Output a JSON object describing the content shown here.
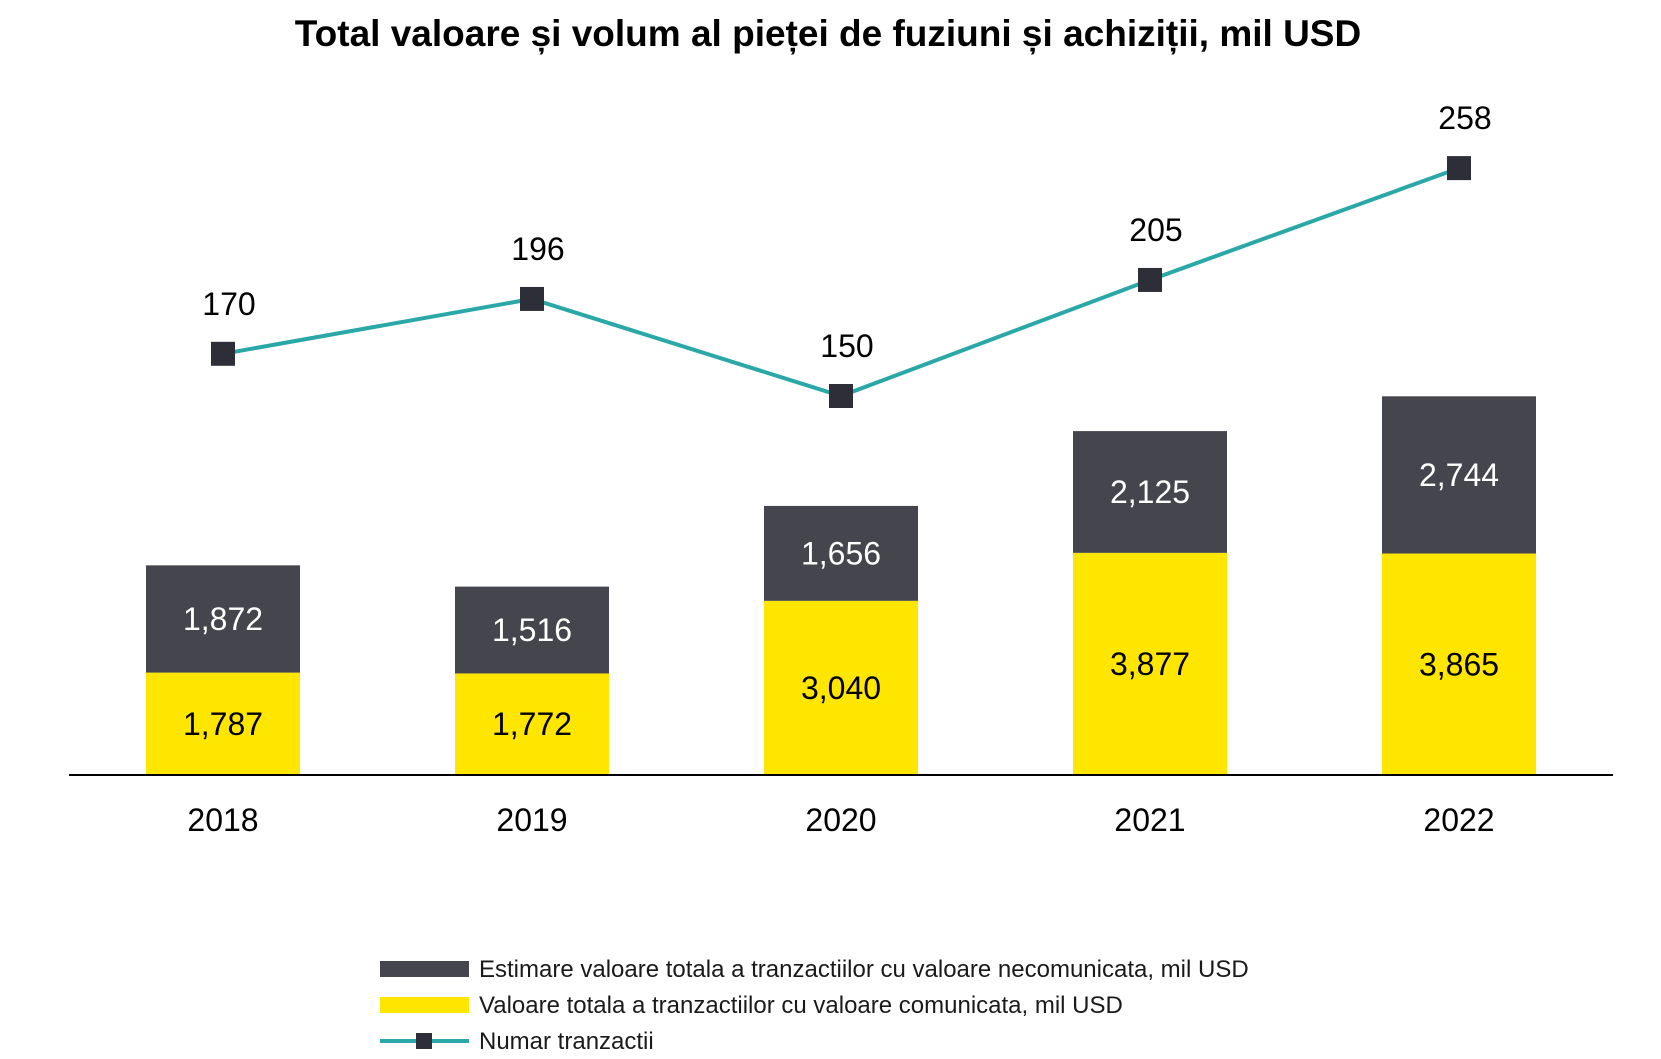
{
  "chart_data": {
    "type": "bar",
    "title": "Total valoare și volum al pieței de fuziuni și achiziții, mil USD",
    "categories": [
      "2018",
      "2019",
      "2020",
      "2021",
      "2022"
    ],
    "series": [
      {
        "name": "Valoare totala a tranzactiilor cu valoare comunicata, mil USD",
        "kind": "stacked-bar",
        "color": "#FFE600",
        "values": [
          1787,
          1772,
          3040,
          3877,
          3865
        ],
        "labels": [
          "1,787",
          "1,772",
          "3,040",
          "3,877",
          "3,865"
        ]
      },
      {
        "name": "Estimare valoare totala a tranzactiilor cu valoare necomunicata, mil USD",
        "kind": "stacked-bar",
        "color": "#45454D",
        "values": [
          1872,
          1516,
          1656,
          2125,
          2744
        ],
        "labels": [
          "1,872",
          "1,516",
          "1,656",
          "2,125",
          "2,744"
        ]
      },
      {
        "name": "Numar tranzactii",
        "kind": "line",
        "color": "#2AA8A8",
        "marker": "square",
        "marker_color": "#2E2E38",
        "values": [
          170,
          196,
          150,
          205,
          258
        ],
        "labels": [
          "170",
          "196",
          "150",
          "205",
          "258"
        ]
      }
    ],
    "legend_order": [
      1,
      0,
      2
    ],
    "legend_position": "bottom",
    "grid": false,
    "yaxis_visible": false
  }
}
